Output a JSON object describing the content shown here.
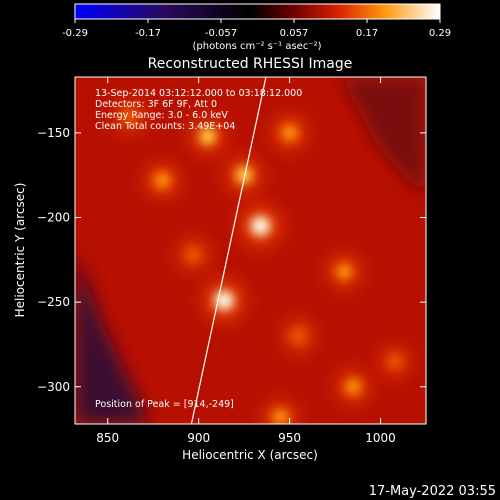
{
  "colorbar": {
    "ticks": [
      "-0.29",
      "-0.17",
      "-0.057",
      "0.057",
      "0.17",
      "0.29"
    ],
    "unit": "(photons cm⁻² s⁻¹ asec⁻²)"
  },
  "chart_data": {
    "type": "heatmap",
    "title": "Reconstructed RHESSI Image",
    "xlabel": "Heliocentric X (arcsec)",
    "ylabel": "Heliocentric Y (arcsec)",
    "xlim": [
      832,
      1025
    ],
    "ylim": [
      -322,
      -117
    ],
    "xticks": [
      850,
      900,
      950,
      1000
    ],
    "yticks": [
      -150,
      -200,
      -250,
      -300
    ],
    "color_range": [
      -0.29,
      0.29
    ],
    "colormap": "thermal (blue-black-red-yellow-white)",
    "annotations": [
      "13-Sep-2014 03:12:12.000 to 03:18:12.000",
      "Detectors: 3F 6F 9F, Att 0",
      "Energy Range: 3.0 - 6.0 keV",
      "Clean    Total counts: 3.49E+04",
      "Position of Peak = [914,-249]"
    ],
    "peak": [
      914,
      -249
    ],
    "sources": [
      {
        "x": 934,
        "y": -205,
        "intensity": 0.29
      },
      {
        "x": 914,
        "y": -249,
        "intensity": 0.29
      },
      {
        "x": 925,
        "y": -175,
        "intensity": 0.21
      },
      {
        "x": 880,
        "y": -178,
        "intensity": 0.18
      },
      {
        "x": 905,
        "y": -152,
        "intensity": 0.2
      },
      {
        "x": 950,
        "y": -150,
        "intensity": 0.18
      },
      {
        "x": 980,
        "y": -232,
        "intensity": 0.17
      },
      {
        "x": 955,
        "y": -270,
        "intensity": 0.15
      },
      {
        "x": 945,
        "y": -318,
        "intensity": 0.17
      },
      {
        "x": 985,
        "y": -300,
        "intensity": 0.17
      },
      {
        "x": 897,
        "y": -222,
        "intensity": 0.14
      },
      {
        "x": 862,
        "y": -140,
        "intensity": 0.15
      },
      {
        "x": 1008,
        "y": -285,
        "intensity": 0.12
      }
    ],
    "limb_line": [
      [
        896,
        -322
      ],
      [
        937,
        -117
      ]
    ]
  },
  "footer": {
    "timestamp": "17-May-2022 03:55"
  }
}
